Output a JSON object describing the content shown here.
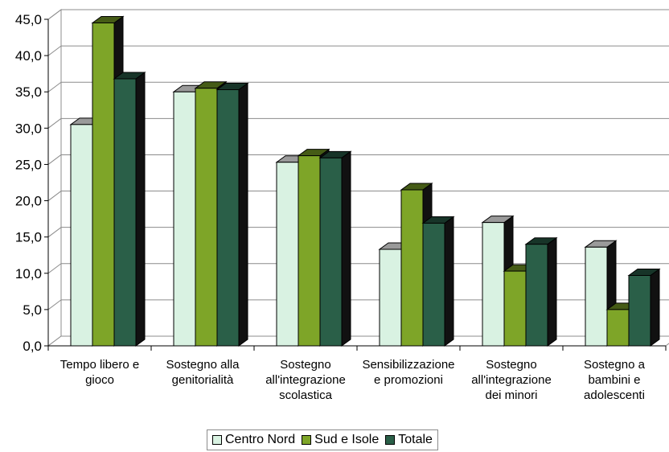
{
  "chart_data": {
    "type": "bar",
    "categories": [
      [
        "Tempo libero e",
        "gioco"
      ],
      [
        "Sostegno alla",
        "genitorialità"
      ],
      [
        "Sostegno",
        "all'integrazione",
        "scolastica"
      ],
      [
        "Sensibilizzazione",
        "e promozioni"
      ],
      [
        "Sostegno",
        "all'integrazione",
        "dei minori"
      ],
      [
        "Sostegno a",
        "bambini e",
        "adolescenti"
      ]
    ],
    "series": [
      {
        "name": "Centro Nord",
        "color": "#d9f2e2",
        "values": [
          30.5,
          35.0,
          25.3,
          13.3,
          17.0,
          13.6
        ]
      },
      {
        "name": "Sud e Isole",
        "color": "#7ea528",
        "values": [
          44.5,
          35.5,
          26.2,
          21.5,
          10.3,
          5.0
        ]
      },
      {
        "name": "Totale",
        "color": "#2a5f48",
        "values": [
          36.8,
          35.3,
          25.9,
          16.9,
          14.0,
          9.7
        ]
      }
    ],
    "ylim": [
      0,
      45
    ],
    "ytick_step": 5,
    "ytick_labels": [
      "0,0",
      "5,0",
      "10,0",
      "15,0",
      "20,0",
      "25,0",
      "30,0",
      "35,0",
      "40,0",
      "45,0"
    ],
    "grid": true,
    "legend_position": "bottom",
    "title": "",
    "xlabel": "",
    "ylabel": ""
  }
}
